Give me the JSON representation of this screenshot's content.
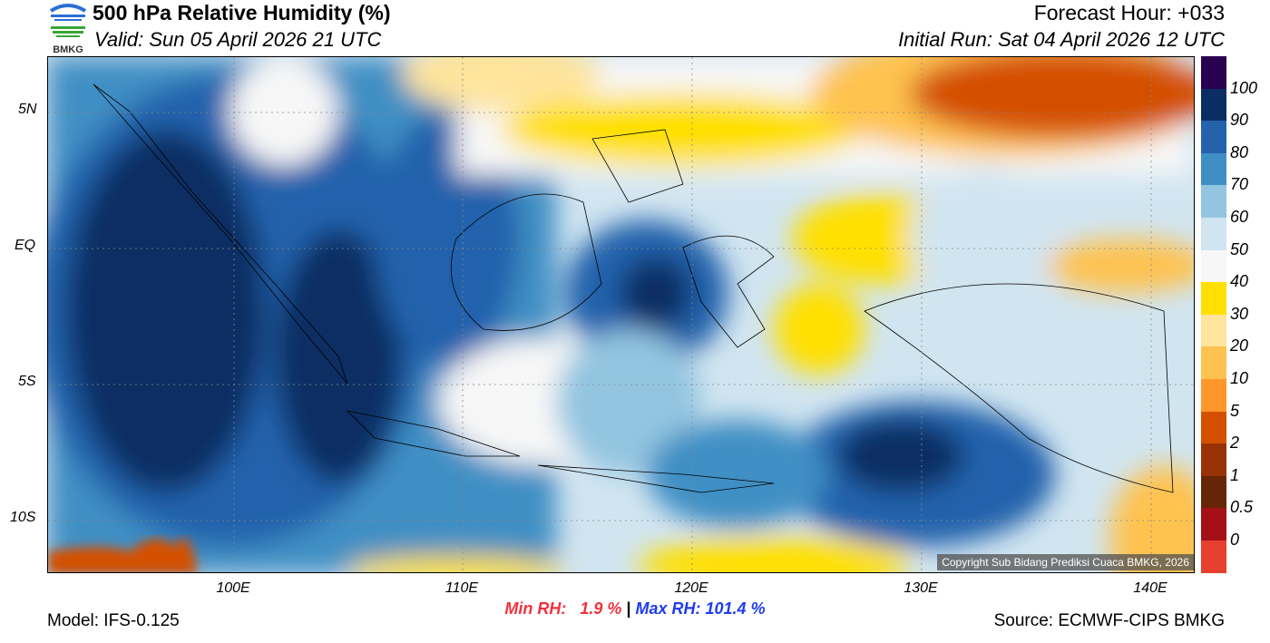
{
  "header": {
    "title": "500 hPa Relative Humidity (%)",
    "valid": "Valid: Sun 05 April 2026 21 UTC",
    "forecast_hour": "Forecast Hour: +033",
    "initial_run": "Initial Run: Sat 04 April 2026 12 UTC",
    "logo_text": "BMKG"
  },
  "axes": {
    "lat_labels": [
      "5N",
      "EQ",
      "5S",
      "10S"
    ],
    "lon_labels": [
      "100E",
      "110E",
      "120E",
      "130E",
      "140E"
    ]
  },
  "colorbar": {
    "labels": [
      "100",
      "90",
      "80",
      "70",
      "60",
      "50",
      "40",
      "30",
      "20",
      "10",
      "5",
      "2",
      "1",
      "0.5",
      "0"
    ],
    "colors": [
      "#2a0050",
      "#0a2d64",
      "#2462ac",
      "#3f8fc4",
      "#93c5e0",
      "#d1e5f1",
      "#f7f7f7",
      "#ffe000",
      "#fee49c",
      "#fec250",
      "#fe9629",
      "#d45000",
      "#993204",
      "#662506",
      "#a51016",
      "#e8402f"
    ]
  },
  "stats": {
    "min": "Min RH:   1.9 %",
    "sep": "|",
    "max": "Max RH: 101.4 %"
  },
  "footer": {
    "model": "Model: IFS-0.125",
    "source": "Source: ECMWF-CIPS BMKG",
    "copyright": "Copyright Sub Bidang Prediksi Cuaca BMKG, 2026"
  }
}
